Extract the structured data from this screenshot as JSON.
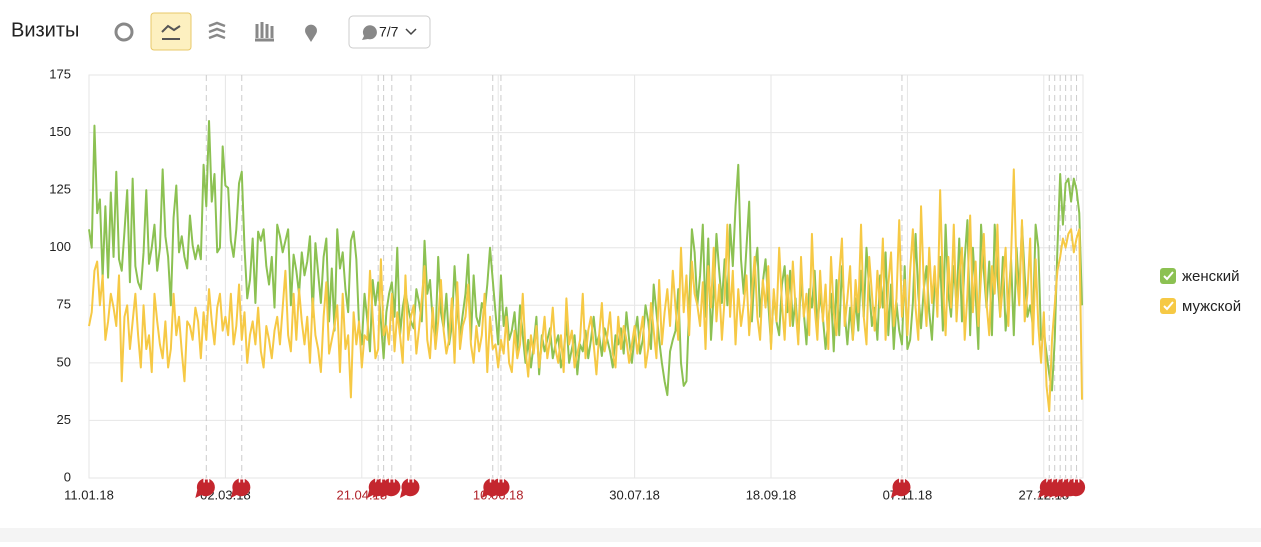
{
  "header": {
    "title": "Визиты",
    "filter": "7/7"
  },
  "chart_data": {
    "type": "line",
    "xlim": [
      0,
      364
    ],
    "xticks": [
      {
        "value": 0,
        "label": "11.01.18"
      },
      {
        "value": 50,
        "label": "02.03.18"
      },
      {
        "value": 100,
        "label": "21.04.18",
        "color": "#b0232a"
      },
      {
        "value": 150,
        "label": "10.06.18",
        "color": "#b0232a"
      },
      {
        "value": 200,
        "label": "30.07.18"
      },
      {
        "value": 250,
        "label": "18.09.18"
      },
      {
        "value": 300,
        "label": "07.11.18"
      },
      {
        "value": 350,
        "label": "27.12.18"
      }
    ],
    "ylim": [
      0,
      175
    ],
    "yticks": [
      0,
      25,
      50,
      75,
      100,
      125,
      150,
      175
    ],
    "grid": true,
    "legend": "right",
    "annotations": [
      {
        "x": 43,
        "label": "Н"
      },
      {
        "x": 56,
        "label": "Н"
      },
      {
        "x": 106,
        "label": "Н"
      },
      {
        "x": 108,
        "label": "Н"
      },
      {
        "x": 111,
        "label": "Н"
      },
      {
        "x": 118,
        "label": "Н"
      },
      {
        "x": 148,
        "label": "Н"
      },
      {
        "x": 151,
        "label": "Н"
      },
      {
        "x": 298,
        "label": "Н"
      },
      {
        "x": 352,
        "label": "Н"
      },
      {
        "x": 354,
        "label": "Н"
      },
      {
        "x": 356,
        "label": "Н"
      },
      {
        "x": 358,
        "label": "Н"
      },
      {
        "x": 360,
        "label": "Н"
      },
      {
        "x": 362,
        "label": "Н"
      }
    ],
    "series": [
      {
        "name": "женский",
        "color": "#8cc152",
        "values": [
          108,
          100,
          153,
          115,
          121,
          87,
          118,
          87,
          124,
          96,
          133,
          95,
          90,
          107,
          125,
          85,
          130,
          92,
          85,
          82,
          98,
          125,
          93,
          100,
          110,
          90,
          100,
          134,
          105,
          96,
          75,
          113,
          127,
          98,
          105,
          96,
          91,
          114,
          101,
          95,
          101,
          95,
          136,
          118,
          155,
          120,
          132,
          98,
          100,
          144,
          127,
          126,
          103,
          96,
          108,
          128,
          133,
          100,
          78,
          86,
          104,
          76,
          107,
          103,
          108,
          92,
          84,
          96,
          74,
          110,
          105,
          98,
          103,
          108,
          75,
          97,
          90,
          80,
          98,
          88,
          94,
          105,
          70,
          102,
          89,
          76,
          96,
          104,
          68,
          91,
          64,
          108,
          91,
          98,
          82,
          72,
          103,
          107,
          95,
          66,
          58,
          80,
          69,
          55,
          86,
          75,
          85,
          68,
          52,
          72,
          80,
          85,
          70,
          100,
          62,
          74,
          81,
          74,
          68,
          65,
          82,
          76,
          68,
          103,
          80,
          86,
          68,
          60,
          96,
          72,
          65,
          80,
          58,
          66,
          92,
          73,
          62,
          71,
          80,
          97,
          60,
          88,
          70,
          66,
          76,
          72,
          84,
          100,
          86,
          72,
          58,
          88,
          66,
          74,
          60,
          64,
          72,
          55,
          75,
          62,
          50,
          60,
          48,
          58,
          70,
          45,
          62,
          55,
          60,
          65,
          52,
          58,
          62,
          48,
          54,
          68,
          50,
          56,
          62,
          45,
          58,
          55,
          64,
          52,
          60,
          70,
          58,
          62,
          53,
          65,
          60,
          55,
          48,
          62,
          58,
          65,
          54,
          72,
          60,
          50,
          62,
          70,
          54,
          60,
          75,
          68,
          56,
          84,
          72,
          60,
          50,
          42,
          36,
          55,
          60,
          64,
          82,
          50,
          40,
          42,
          74,
          108,
          98,
          75,
          88,
          110,
          70,
          104,
          60,
          80,
          106,
          90,
          76,
          95,
          75,
          110,
          92,
          118,
          136,
          95,
          80,
          100,
          120,
          68,
          90,
          100,
          70,
          85,
          95,
          76,
          58,
          80,
          68,
          62,
          84,
          92,
          72,
          90,
          66,
          78,
          60,
          86,
          72,
          58,
          82,
          74,
          90,
          65,
          80,
          70,
          56,
          68,
          80,
          55,
          86,
          62,
          92,
          72,
          58,
          74,
          60,
          78,
          64,
          90,
          70,
          100,
          82,
          66,
          74,
          60,
          88,
          74,
          98,
          62,
          84,
          56,
          76,
          64,
          58,
          92,
          56,
          60,
          76,
          106,
          80,
          65,
          82,
          92,
          72,
          60,
          85,
          78,
          96,
          64,
          110,
          80,
          70,
          92,
          75,
          104,
          68,
          95,
          112,
          62,
          100,
          80,
          56,
          110,
          90,
          74,
          94,
          62,
          110,
          88,
          70,
          96,
          64,
          76,
          95,
          62,
          100,
          80,
          110,
          88,
          70,
          75,
          66,
          110,
          100,
          60,
          64,
          54,
          45,
          38,
          60,
          100,
          132,
          110,
          128,
          130,
          120,
          130,
          125,
          115,
          75
        ]
      },
      {
        "name": "мужской",
        "color": "#f6c945",
        "values": [
          66,
          72,
          90,
          94,
          75,
          88,
          60,
          68,
          80,
          74,
          66,
          88,
          42,
          70,
          75,
          56,
          68,
          80,
          62,
          48,
          75,
          56,
          62,
          46,
          80,
          68,
          58,
          52,
          68,
          48,
          56,
          80,
          62,
          70,
          55,
          42,
          68,
          66,
          60,
          74,
          68,
          52,
          72,
          60,
          82,
          68,
          58,
          74,
          80,
          64,
          70,
          62,
          80,
          58,
          66,
          84,
          60,
          72,
          50,
          62,
          68,
          58,
          74,
          55,
          48,
          66,
          60,
          52,
          64,
          70,
          58,
          74,
          90,
          62,
          55,
          80,
          60,
          82,
          68,
          58,
          70,
          50,
          78,
          62,
          56,
          46,
          70,
          85,
          54,
          60,
          66,
          75,
          46,
          80,
          56,
          62,
          35,
          72,
          58,
          68,
          48,
          62,
          60,
          90,
          70,
          52,
          56,
          95,
          62,
          66,
          58,
          80,
          55,
          72,
          62,
          50,
          88,
          60,
          70,
          75,
          54,
          65,
          78,
          92,
          60,
          52,
          74,
          56,
          68,
          86,
          64,
          54,
          60,
          78,
          50,
          85,
          56,
          66,
          70,
          84,
          58,
          50,
          66,
          55,
          62,
          80,
          46,
          70,
          56,
          58,
          48,
          60,
          54,
          70,
          50,
          46,
          64,
          52,
          58,
          80,
          56,
          44,
          62,
          54,
          66,
          48,
          58,
          70,
          52,
          60,
          74,
          56,
          50,
          62,
          46,
          78,
          58,
          64,
          48,
          54,
          60,
          80,
          52,
          64,
          70,
          58,
          45,
          62,
          76,
          55,
          62,
          72,
          54,
          48,
          70,
          56,
          66,
          60,
          50,
          58,
          66,
          54,
          62,
          70,
          48,
          56,
          76,
          64,
          52,
          86,
          58,
          72,
          82,
          66,
          90,
          74,
          60,
          100,
          72,
          88,
          62,
          94,
          80,
          75,
          66,
          85,
          56,
          92,
          74,
          100,
          68,
          84,
          60,
          78,
          110,
          70,
          90,
          58,
          82,
          66,
          75,
          88,
          62,
          80,
          96,
          70,
          60,
          86,
          74,
          92,
          56,
          82,
          68,
          100,
          76,
          60,
          88,
          66,
          94,
          74,
          58,
          96,
          70,
          80,
          62,
          106,
          74,
          60,
          90,
          68,
          84,
          56,
          96,
          72,
          62,
          88,
          104,
          66,
          78,
          92,
          60,
          86,
          72,
          110,
          70,
          58,
          96,
          80,
          64,
          90,
          74,
          104,
          60,
          84,
          98,
          66,
          78,
          112,
          70,
          86,
          62,
          90,
          108,
          74,
          60,
          118,
          84,
          66,
          100,
          76,
          92,
          70,
          125,
          84,
          62,
          96,
          74,
          110,
          68,
          88,
          100,
          60,
          80,
          114,
          72,
          94,
          66,
          88,
          106,
          76,
          62,
          92,
          80,
          110,
          70,
          84,
          100,
          66,
          96,
          134,
          90,
          75,
          112,
          68,
          80,
          104,
          58,
          95,
          66,
          50,
          72,
          40,
          29,
          60,
          75,
          90,
          96,
          104,
          100,
          106,
          108,
          98,
          104,
          108,
          34
        ]
      }
    ]
  }
}
